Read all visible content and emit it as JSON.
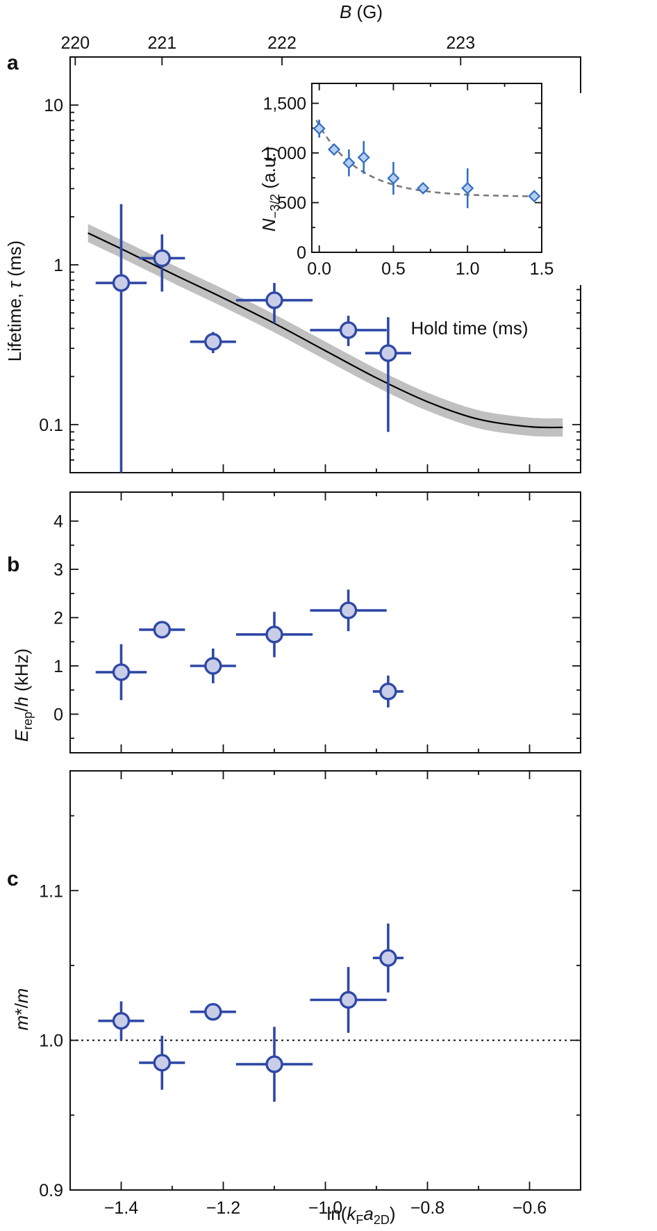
{
  "chart_data": [
    {
      "panel": "a",
      "type": "scatter",
      "ylabel_main": "Lifetime, ",
      "ylabel_var": "τ",
      "ylabel_unit": " (ms)",
      "top_axis_label_var": "B",
      "top_axis_label_unit": " (G)",
      "ylog": true,
      "ylim": [
        0.05,
        20
      ],
      "xlim": [
        -1.5,
        -0.5
      ],
      "yticks": [
        0.1,
        1,
        10
      ],
      "ytick_labels": [
        "0.1",
        "1",
        "10"
      ],
      "top_ticks": [
        {
          "label": "220",
          "x": -1.49
        },
        {
          "label": "221",
          "x": -1.32
        },
        {
          "label": "222",
          "x": -1.085
        },
        {
          "label": "223",
          "x": -0.735
        }
      ],
      "points": [
        {
          "x": -1.4,
          "y": 0.77,
          "xerr": 0.05,
          "ylo": 0.05,
          "yhi": 2.4
        },
        {
          "x": -1.32,
          "y": 1.1,
          "xerr": 0.045,
          "ylo": 0.68,
          "yhi": 1.55
        },
        {
          "x": -1.22,
          "y": 0.33,
          "xerr": 0.045,
          "ylo": 0.28,
          "yhi": 0.38
        },
        {
          "x": -1.1,
          "y": 0.6,
          "xerr": 0.075,
          "ylo": 0.43,
          "yhi": 0.77
        },
        {
          "x": -0.955,
          "y": 0.39,
          "xerr": 0.075,
          "ylo": 0.31,
          "yhi": 0.48
        },
        {
          "x": -0.877,
          "y": 0.28,
          "xerr": 0.045,
          "ylo": 0.09,
          "yhi": 0.47
        }
      ],
      "fit_curve": {
        "x": [
          -1.465,
          -1.4,
          -1.3,
          -1.2,
          -1.1,
          -1.0,
          -0.9,
          -0.8,
          -0.7,
          -0.6,
          -0.535
        ],
        "y": [
          1.58,
          1.26,
          0.88,
          0.62,
          0.43,
          0.29,
          0.196,
          0.139,
          0.108,
          0.097,
          0.096
        ],
        "band_factor": 1.14
      },
      "inset": {
        "type": "scatter",
        "xlabel": "Hold time (ms)",
        "ylabel_var": "N",
        "ylabel_sub": "−3/2",
        "ylabel_unit": " (a.u.)",
        "xlim": [
          -0.05,
          1.5
        ],
        "ylim": [
          0,
          1700
        ],
        "xticks": [
          0,
          0.5,
          1,
          1.5
        ],
        "xtick_labels": [
          "0.0",
          "0.5",
          "1.0",
          "1.5"
        ],
        "yticks": [
          0,
          500,
          1000,
          1500
        ],
        "ytick_labels": [
          "0",
          "500",
          "1,000",
          "1,500"
        ],
        "points": [
          {
            "x": 0.0,
            "y": 1245,
            "yerr": 90
          },
          {
            "x": 0.1,
            "y": 1035,
            "yerr": 40
          },
          {
            "x": 0.2,
            "y": 900,
            "yerr": 135
          },
          {
            "x": 0.3,
            "y": 955,
            "yerr": 165
          },
          {
            "x": 0.5,
            "y": 745,
            "yerr": 165
          },
          {
            "x": 0.7,
            "y": 645,
            "yerr": 30
          },
          {
            "x": 1.0,
            "y": 645,
            "yerr": 200
          },
          {
            "x": 1.45,
            "y": 565,
            "yerr": 25
          }
        ],
        "fit_curve": {
          "x0": -0.02,
          "x1": 1.45,
          "amp": 770,
          "offset": 560,
          "tau": 0.28
        }
      }
    },
    {
      "panel": "b",
      "type": "scatter",
      "ylabel_var": "E",
      "ylabel_sub": "rep",
      "ylabel_mid": "/",
      "ylabel_var2": "h",
      "ylabel_unit": " (kHz)",
      "xlim": [
        -1.5,
        -0.5
      ],
      "ylim": [
        -0.8,
        4.6
      ],
      "yticks": [
        0,
        1,
        2,
        3,
        4
      ],
      "ytick_labels": [
        "0",
        "1",
        "2",
        "3",
        "4"
      ],
      "points": [
        {
          "x": -1.4,
          "y": 0.87,
          "xerr": 0.05,
          "yerr": 0.58
        },
        {
          "x": -1.32,
          "y": 1.75,
          "xerr": 0.045,
          "yerr": 0.1
        },
        {
          "x": -1.22,
          "y": 1.0,
          "xerr": 0.045,
          "yerr": 0.36
        },
        {
          "x": -1.1,
          "y": 1.65,
          "xerr": 0.075,
          "yerr": 0.47
        },
        {
          "x": -0.955,
          "y": 2.15,
          "xerr": 0.075,
          "yerr": 0.43
        },
        {
          "x": -0.877,
          "y": 0.47,
          "xerr": 0.03,
          "yerr": 0.33
        }
      ]
    },
    {
      "panel": "c",
      "type": "scatter",
      "ylabel_var": "m",
      "ylabel_unit": "*/",
      "ylabel_var2": "m",
      "xlabel_pre": "ln(",
      "xlabel_var": "k",
      "xlabel_sub": "F",
      "xlabel_var2": "a",
      "xlabel_sub2": "2D",
      "xlabel_post": ")",
      "xlim": [
        -1.5,
        -0.5
      ],
      "ylim": [
        0.9,
        1.18
      ],
      "yticks": [
        0.9,
        1.0,
        1.1
      ],
      "ytick_labels": [
        "0.9",
        "1.0",
        "1.1"
      ],
      "xticks": [
        -1.4,
        -1.2,
        -1.0,
        -0.8,
        -0.6
      ],
      "xtick_labels": [
        "−1.4",
        "−1.2",
        "−1.0",
        "−0.8",
        "−0.6"
      ],
      "reference_y": 1.0,
      "points": [
        {
          "x": -1.4,
          "y": 1.013,
          "xerr": 0.045,
          "yerr": 0.013
        },
        {
          "x": -1.32,
          "y": 0.985,
          "xerr": 0.045,
          "yerr": 0.018
        },
        {
          "x": -1.22,
          "y": 1.019,
          "xerr": 0.045,
          "yerr": 0.004
        },
        {
          "x": -1.1,
          "y": 0.984,
          "xerr": 0.075,
          "yerr": 0.025
        },
        {
          "x": -0.955,
          "y": 1.027,
          "xerr": 0.075,
          "yerr": 0.022
        },
        {
          "x": -0.877,
          "y": 1.055,
          "xerr": 0.03,
          "yerr": 0.023
        }
      ]
    }
  ]
}
